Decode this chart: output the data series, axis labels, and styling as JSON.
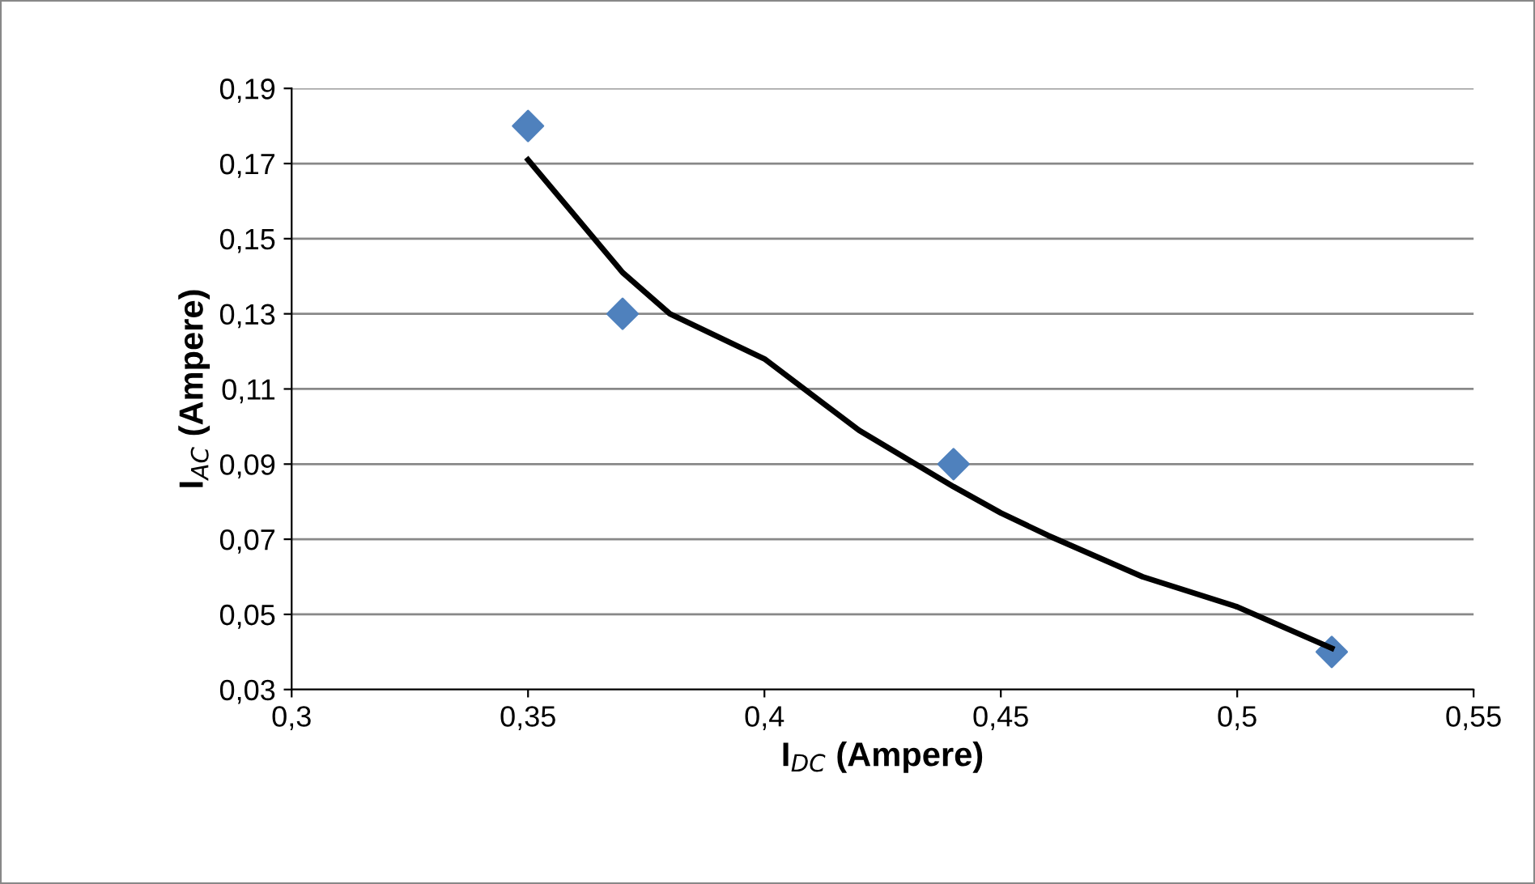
{
  "chart_data": {
    "type": "scatter",
    "xlabel": "I$_{DC}$ (Ampere)",
    "ylabel": "I$_{AC}$ (Ampere)",
    "xlim": [
      0.3,
      0.55
    ],
    "ylim": [
      0.03,
      0.19
    ],
    "xticks": [
      {
        "value": 0.3,
        "label": "0,3"
      },
      {
        "value": 0.35,
        "label": "0,35"
      },
      {
        "value": 0.4,
        "label": "0,4"
      },
      {
        "value": 0.45,
        "label": "0,45"
      },
      {
        "value": 0.5,
        "label": "0,5"
      },
      {
        "value": 0.55,
        "label": "0,55"
      }
    ],
    "yticks": [
      {
        "value": 0.03,
        "label": "0,03"
      },
      {
        "value": 0.05,
        "label": "0,05"
      },
      {
        "value": 0.07,
        "label": "0,07"
      },
      {
        "value": 0.09,
        "label": "0,09"
      },
      {
        "value": 0.11,
        "label": "0,11"
      },
      {
        "value": 0.13,
        "label": "0,13"
      },
      {
        "value": 0.15,
        "label": "0,15"
      },
      {
        "value": 0.17,
        "label": "0,17"
      },
      {
        "value": 0.19,
        "label": "0,19"
      }
    ],
    "grid": "y",
    "legend": false,
    "series": [
      {
        "color": "#4f81bd",
        "marker": "diamond",
        "x": [
          0.35,
          0.37,
          0.44,
          0.52
        ],
        "values": [
          0.18,
          0.13,
          0.09,
          0.04
        ]
      },
      {
        "type": "line",
        "color": "#000000",
        "marker": "none",
        "line_style": "solid",
        "x": [
          0.35,
          0.37,
          0.38,
          0.4,
          0.42,
          0.44,
          0.45,
          0.46,
          0.48,
          0.5,
          0.52
        ],
        "values": [
          0.171,
          0.141,
          0.13,
          0.118,
          0.099,
          0.084,
          0.077,
          0.071,
          0.06,
          0.052,
          0.041
        ]
      }
    ]
  }
}
